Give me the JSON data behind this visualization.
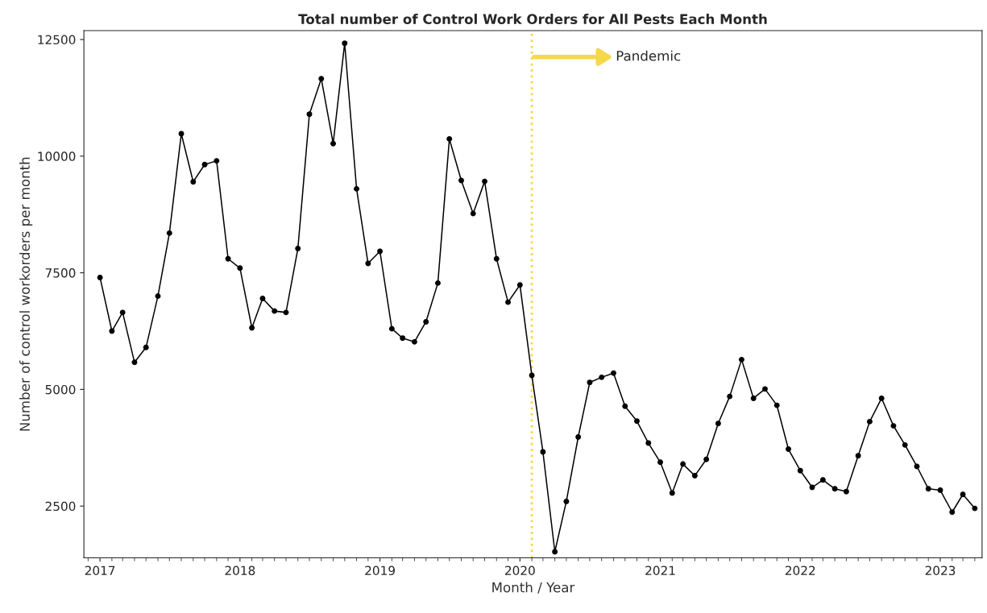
{
  "chart_data": {
    "type": "line",
    "title": "Total number of Control Work Orders for All Pests Each Month",
    "xlabel": "Month / Year",
    "ylabel": "Number of control workorders per month",
    "x": [
      "2017-01",
      "2017-02",
      "2017-03",
      "2017-04",
      "2017-05",
      "2017-06",
      "2017-07",
      "2017-08",
      "2017-09",
      "2017-10",
      "2017-11",
      "2017-12",
      "2018-01",
      "2018-02",
      "2018-03",
      "2018-04",
      "2018-05",
      "2018-06",
      "2018-07",
      "2018-08",
      "2018-09",
      "2018-10",
      "2018-11",
      "2018-12",
      "2019-01",
      "2019-02",
      "2019-03",
      "2019-04",
      "2019-05",
      "2019-06",
      "2019-07",
      "2019-08",
      "2019-09",
      "2019-10",
      "2019-11",
      "2019-12",
      "2020-01",
      "2020-02",
      "2020-03",
      "2020-04",
      "2020-05",
      "2020-06",
      "2020-07",
      "2020-08",
      "2020-09",
      "2020-10",
      "2020-11",
      "2020-12",
      "2021-01",
      "2021-02",
      "2021-03",
      "2021-04",
      "2021-05",
      "2021-06",
      "2021-07",
      "2021-08",
      "2021-09",
      "2021-10",
      "2021-11",
      "2021-12",
      "2022-01",
      "2022-02",
      "2022-03",
      "2022-04",
      "2022-05",
      "2022-06",
      "2022-07",
      "2022-08",
      "2022-09",
      "2022-10",
      "2022-11",
      "2022-12",
      "2023-01",
      "2023-02",
      "2023-03",
      "2023-04"
    ],
    "series": [
      {
        "color": "#000000",
        "values": [
          7400,
          6250,
          6650,
          5580,
          5900,
          7000,
          8350,
          10480,
          9450,
          9820,
          9900,
          7800,
          7600,
          6320,
          6950,
          6680,
          6650,
          8020,
          10900,
          11660,
          10270,
          12420,
          9300,
          7700,
          7960,
          6300,
          6100,
          6020,
          6450,
          7280,
          10370,
          9480,
          8770,
          9460,
          7800,
          6870,
          7240,
          5300,
          3660,
          1520,
          2600,
          3980,
          5150,
          5260,
          5350,
          4640,
          4320,
          3850,
          3440,
          2780,
          3400,
          3150,
          3500,
          4270,
          4850,
          5640,
          4810,
          5010,
          4660,
          3720,
          3260,
          2900,
          3060,
          2870,
          2810,
          3580,
          4310,
          4810,
          4220,
          3810,
          3350,
          2870,
          2840,
          2370,
          2750,
          2450
        ]
      }
    ],
    "marker": "circle",
    "line_style": "solid",
    "grid": false,
    "legend": false,
    "xlim": [
      "2016-11-20",
      "2023-04-20"
    ],
    "xticks": [
      {
        "value": "2017-01-01",
        "label": "2017"
      },
      {
        "value": "2018-01-01",
        "label": "2018"
      },
      {
        "value": "2019-01-01",
        "label": "2019"
      },
      {
        "value": "2020-01-01",
        "label": "2020"
      },
      {
        "value": "2021-01-01",
        "label": "2021"
      },
      {
        "value": "2022-01-01",
        "label": "2022"
      },
      {
        "value": "2023-01-01",
        "label": "2023"
      }
    ],
    "ylim": [
      1390,
      12690
    ],
    "yticks": [
      2500,
      5000,
      7500,
      10000,
      12500
    ],
    "ref_lines": [
      {
        "axis": "x",
        "value": "2020-02",
        "label": "Pandemic",
        "color": "#f5d94a",
        "line_style": "dotted"
      }
    ]
  }
}
